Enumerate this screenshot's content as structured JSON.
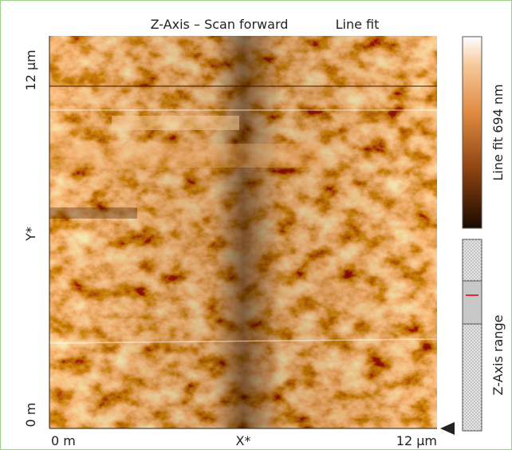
{
  "header": {
    "title": "Z-Axis – Scan forward",
    "mode": "Line fit"
  },
  "axes": {
    "y": {
      "labels": [
        "12 µm",
        "Y*",
        "0 m"
      ]
    },
    "x": {
      "labels": [
        "0 m",
        "X*",
        "12 µm"
      ]
    }
  },
  "colorbar": {
    "label": "Line fit 694 nm"
  },
  "range": {
    "label": "Z-Axis range"
  }
}
